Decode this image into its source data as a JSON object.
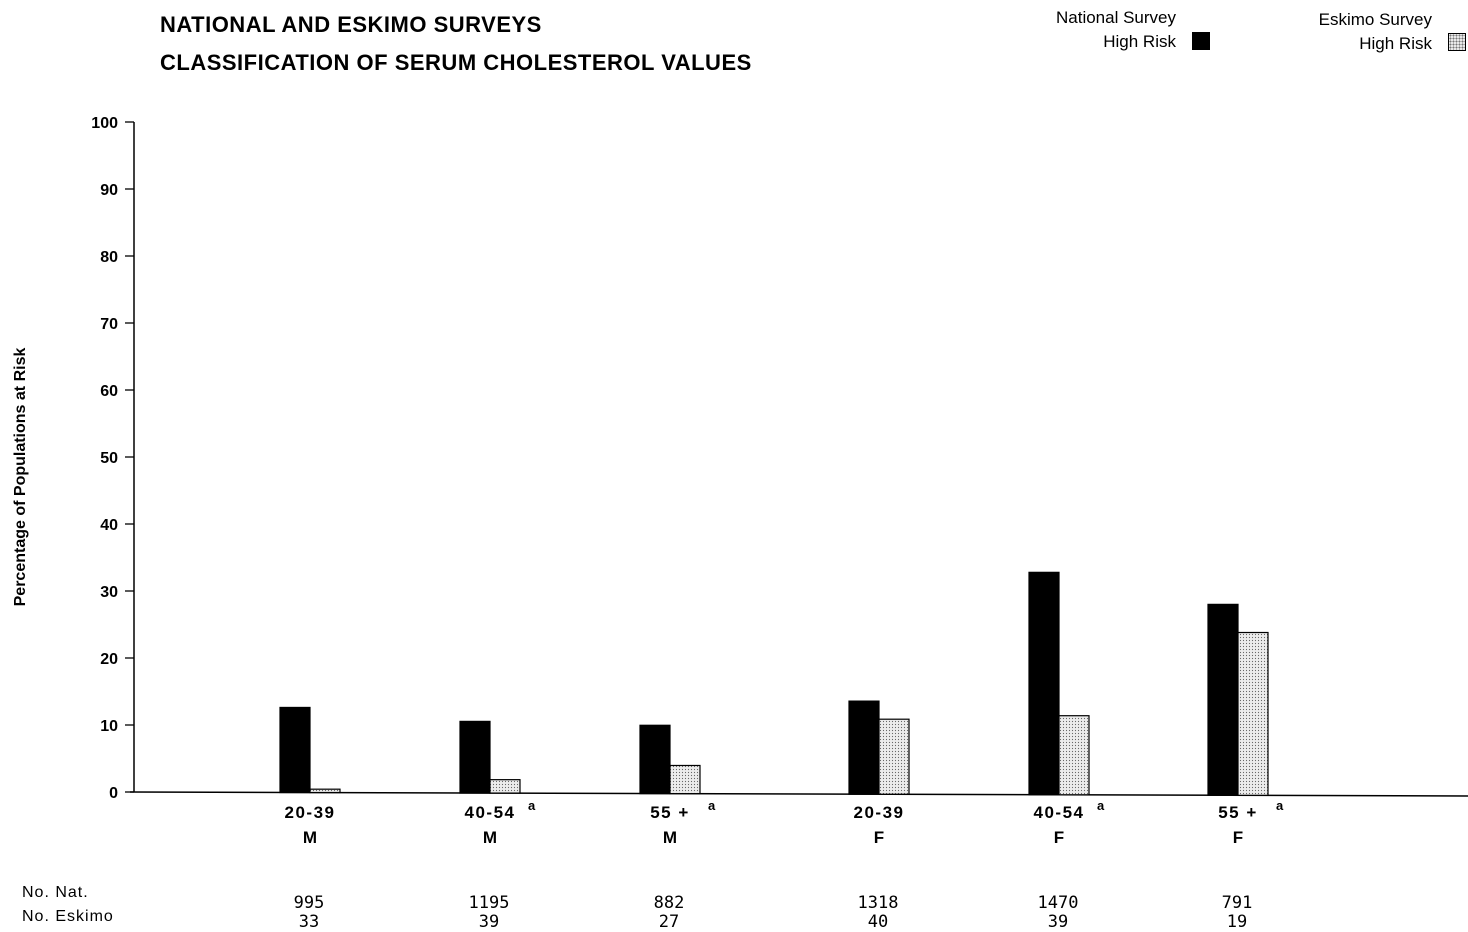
{
  "chart_data": {
    "type": "bar",
    "title": "NATIONAL AND ESKIMO SURVEYS",
    "subtitle": "CLASSIFICATION OF SERUM CHOLESTEROL VALUES",
    "ylabel": "Percentage of Populations at Risk",
    "xlabel": "",
    "ylim": [
      0,
      100
    ],
    "yticks": [
      "0",
      "10",
      "20",
      "30",
      "40",
      "50",
      "60",
      "70",
      "80",
      "90",
      "100"
    ],
    "grid": false,
    "legend_position": "top-right",
    "categories": [
      {
        "age": "20-39",
        "sex": "M",
        "mark": ""
      },
      {
        "age": "40-54",
        "sex": "M",
        "mark": "a"
      },
      {
        "age": "55 +",
        "sex": "M",
        "mark": "a"
      },
      {
        "age": "20-39",
        "sex": "F",
        "mark": ""
      },
      {
        "age": "40-54",
        "sex": "F",
        "mark": "a"
      },
      {
        "age": "55 +",
        "sex": "F",
        "mark": "a"
      }
    ],
    "series": [
      {
        "name_line1": "National Survey",
        "name_line2": "High Risk",
        "color": "#000000",
        "values": [
          12.7,
          10.7,
          10.2,
          13.9,
          33.2,
          28.5
        ]
      },
      {
        "name_line1": "Eskimo Survey",
        "name_line2": "High Risk",
        "color": "#e8e8e8",
        "values": [
          0.5,
          2.0,
          4.2,
          11.2,
          11.8,
          24.3
        ]
      }
    ],
    "counts": {
      "national_label": "No.  Nat.",
      "eskimo_label": "No.  Eskimo",
      "national": [
        "995",
        "1195",
        "882",
        "1318",
        "1470",
        "791"
      ],
      "eskimo": [
        "33",
        "39",
        "27",
        "40",
        "39",
        "19"
      ]
    }
  }
}
